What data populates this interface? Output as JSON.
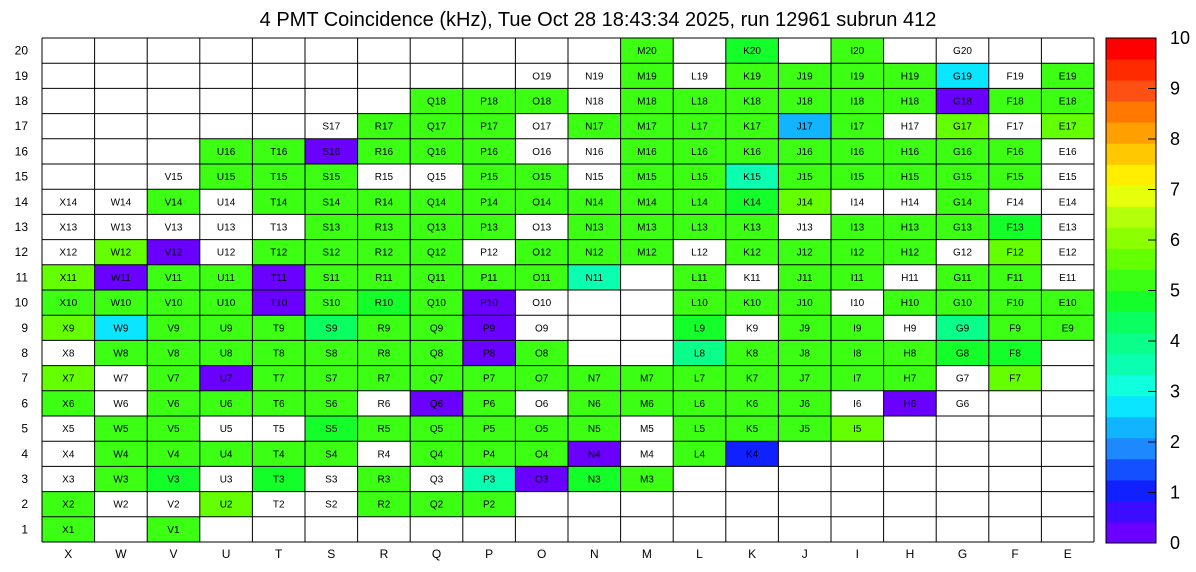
{
  "chart_data": {
    "type": "heatmap",
    "title": "4 PMT Coincidence (kHz), Tue Oct 28 18:43:34 2025, run 12961 subrun 412",
    "xlabel": "",
    "ylabel": "",
    "x_categories": [
      "X",
      "W",
      "V",
      "U",
      "T",
      "S",
      "R",
      "Q",
      "P",
      "O",
      "N",
      "M",
      "L",
      "K",
      "J",
      "I",
      "H",
      "G",
      "F",
      "E"
    ],
    "y_categories": [
      "1",
      "2",
      "3",
      "4",
      "5",
      "6",
      "7",
      "8",
      "9",
      "10",
      "11",
      "12",
      "13",
      "14",
      "15",
      "16",
      "17",
      "18",
      "19",
      "20"
    ],
    "color_scale": {
      "min": 0,
      "max": 10,
      "ticks": [
        "0",
        "1",
        "2",
        "3",
        "4",
        "5",
        "6",
        "7",
        "8",
        "9",
        "10"
      ]
    },
    "palette": [
      "#6a00ff",
      "#3b0cff",
      "#1020ff",
      "#1450ff",
      "#1e88ff",
      "#10b4ff",
      "#0ae6ff",
      "#10ffdc",
      "#0affb0",
      "#0aff8a",
      "#0aff60",
      "#14ff2a",
      "#3cff14",
      "#64ff00",
      "#8cff00",
      "#b4ff0a",
      "#e6ff0a",
      "#ffee00",
      "#ffc800",
      "#ffa000",
      "#ff7800",
      "#ff5014",
      "#ff2a00",
      "#ff0000"
    ],
    "cells": [
      {
        "label": "X1",
        "value": 5.0
      },
      {
        "label": "V1",
        "value": 5.0
      },
      {
        "label": "X2",
        "value": 5.0
      },
      {
        "label": "W2",
        "value": null
      },
      {
        "label": "V2",
        "value": null
      },
      {
        "label": "U2",
        "value": 5.6
      },
      {
        "label": "T2",
        "value": null
      },
      {
        "label": "S2",
        "value": null
      },
      {
        "label": "R2",
        "value": 5.0
      },
      {
        "label": "Q2",
        "value": 5.0
      },
      {
        "label": "P2",
        "value": 5.0
      },
      {
        "label": "X3",
        "value": null
      },
      {
        "label": "W3",
        "value": 5.0
      },
      {
        "label": "V3",
        "value": 4.6
      },
      {
        "label": "U3",
        "value": null
      },
      {
        "label": "T3",
        "value": 4.8
      },
      {
        "label": "S3",
        "value": null
      },
      {
        "label": "R3",
        "value": 5.0
      },
      {
        "label": "Q3",
        "value": null
      },
      {
        "label": "P3",
        "value": 3.5
      },
      {
        "label": "O3",
        "value": 0.3
      },
      {
        "label": "N3",
        "value": 4.8
      },
      {
        "label": "M3",
        "value": 5.0
      },
      {
        "label": "X4",
        "value": null
      },
      {
        "label": "W4",
        "value": 5.0
      },
      {
        "label": "V4",
        "value": 5.0
      },
      {
        "label": "U4",
        "value": 5.0
      },
      {
        "label": "T4",
        "value": 5.0
      },
      {
        "label": "S4",
        "value": 5.0
      },
      {
        "label": "R4",
        "value": null
      },
      {
        "label": "Q4",
        "value": 5.0
      },
      {
        "label": "P4",
        "value": 5.0
      },
      {
        "label": "O4",
        "value": 5.0
      },
      {
        "label": "N4",
        "value": 0.4
      },
      {
        "label": "M4",
        "value": null
      },
      {
        "label": "L4",
        "value": 5.1
      },
      {
        "label": "K4",
        "value": 1.0
      },
      {
        "label": "X5",
        "value": null
      },
      {
        "label": "W5",
        "value": 5.0
      },
      {
        "label": "V5",
        "value": 5.0
      },
      {
        "label": "U5",
        "value": null
      },
      {
        "label": "T5",
        "value": null
      },
      {
        "label": "S5",
        "value": 4.8
      },
      {
        "label": "R5",
        "value": 5.0
      },
      {
        "label": "Q5",
        "value": 5.0
      },
      {
        "label": "P5",
        "value": 5.0
      },
      {
        "label": "O5",
        "value": 5.0
      },
      {
        "label": "N5",
        "value": 5.0
      },
      {
        "label": "M5",
        "value": null
      },
      {
        "label": "L5",
        "value": 5.0
      },
      {
        "label": "K5",
        "value": 5.0
      },
      {
        "label": "J5",
        "value": 5.0
      },
      {
        "label": "I5",
        "value": 5.6
      },
      {
        "label": "X6",
        "value": 5.0
      },
      {
        "label": "W6",
        "value": null
      },
      {
        "label": "V6",
        "value": 5.0
      },
      {
        "label": "U6",
        "value": 5.0
      },
      {
        "label": "T6",
        "value": 5.0
      },
      {
        "label": "S6",
        "value": 5.0
      },
      {
        "label": "R6",
        "value": null
      },
      {
        "label": "Q6",
        "value": 0.4
      },
      {
        "label": "P6",
        "value": 5.0
      },
      {
        "label": "O6",
        "value": null
      },
      {
        "label": "N6",
        "value": 5.0
      },
      {
        "label": "M6",
        "value": 5.0
      },
      {
        "label": "L6",
        "value": 5.0
      },
      {
        "label": "K6",
        "value": 5.0
      },
      {
        "label": "J6",
        "value": 5.0
      },
      {
        "label": "I6",
        "value": null
      },
      {
        "label": "H6",
        "value": 0.4
      },
      {
        "label": "G6",
        "value": null
      },
      {
        "label": "X7",
        "value": 5.6
      },
      {
        "label": "W7",
        "value": null
      },
      {
        "label": "V7",
        "value": 5.0
      },
      {
        "label": "U7",
        "value": 0.4
      },
      {
        "label": "T7",
        "value": 5.0
      },
      {
        "label": "S7",
        "value": 5.0
      },
      {
        "label": "R7",
        "value": 5.0
      },
      {
        "label": "Q7",
        "value": 5.0
      },
      {
        "label": "P7",
        "value": 5.0
      },
      {
        "label": "O7",
        "value": 5.0
      },
      {
        "label": "N7",
        "value": 5.0
      },
      {
        "label": "M7",
        "value": 5.0
      },
      {
        "label": "L7",
        "value": 5.0
      },
      {
        "label": "K7",
        "value": 5.0
      },
      {
        "label": "J7",
        "value": 5.0
      },
      {
        "label": "I7",
        "value": 5.0
      },
      {
        "label": "H7",
        "value": 5.0
      },
      {
        "label": "G7",
        "value": null
      },
      {
        "label": "F7",
        "value": 5.6
      },
      {
        "label": "X8",
        "value": null
      },
      {
        "label": "W8",
        "value": 5.0
      },
      {
        "label": "V8",
        "value": 5.0
      },
      {
        "label": "U8",
        "value": 5.0
      },
      {
        "label": "T8",
        "value": 5.0
      },
      {
        "label": "S8",
        "value": 5.0
      },
      {
        "label": "R8",
        "value": 5.0
      },
      {
        "label": "Q8",
        "value": 5.0
      },
      {
        "label": "P8",
        "value": 0.4
      },
      {
        "label": "O8",
        "value": 5.0
      },
      {
        "label": "L8",
        "value": 4.0
      },
      {
        "label": "K8",
        "value": 5.0
      },
      {
        "label": "J8",
        "value": 5.0
      },
      {
        "label": "I8",
        "value": 5.0
      },
      {
        "label": "H8",
        "value": 5.0
      },
      {
        "label": "G8",
        "value": 4.8
      },
      {
        "label": "F8",
        "value": 4.8
      },
      {
        "label": "X9",
        "value": 5.6
      },
      {
        "label": "W9",
        "value": 2.8
      },
      {
        "label": "V9",
        "value": 5.0
      },
      {
        "label": "U9",
        "value": 5.0
      },
      {
        "label": "T9",
        "value": 5.0
      },
      {
        "label": "S9",
        "value": 4.3
      },
      {
        "label": "R9",
        "value": 5.0
      },
      {
        "label": "Q9",
        "value": 5.0
      },
      {
        "label": "P9",
        "value": 0.4
      },
      {
        "label": "O9",
        "value": null
      },
      {
        "label": "L9",
        "value": 4.8
      },
      {
        "label": "K9",
        "value": null
      },
      {
        "label": "J9",
        "value": 5.0
      },
      {
        "label": "I9",
        "value": 5.0
      },
      {
        "label": "H9",
        "value": null
      },
      {
        "label": "G9",
        "value": 4.0
      },
      {
        "label": "F9",
        "value": 5.0
      },
      {
        "label": "E9",
        "value": 5.0
      },
      {
        "label": "X10",
        "value": 5.0
      },
      {
        "label": "W10",
        "value": 5.0
      },
      {
        "label": "V10",
        "value": 5.0
      },
      {
        "label": "U10",
        "value": 5.0
      },
      {
        "label": "T10",
        "value": 0.4
      },
      {
        "label": "S10",
        "value": 5.0
      },
      {
        "label": "R10",
        "value": 4.6
      },
      {
        "label": "Q10",
        "value": 5.0
      },
      {
        "label": "P10",
        "value": 0.4
      },
      {
        "label": "O10",
        "value": null
      },
      {
        "label": "L10",
        "value": 5.0
      },
      {
        "label": "K10",
        "value": 5.0
      },
      {
        "label": "J10",
        "value": 5.0
      },
      {
        "label": "I10",
        "value": null
      },
      {
        "label": "H10",
        "value": 5.0
      },
      {
        "label": "G10",
        "value": 5.0
      },
      {
        "label": "F10",
        "value": 5.0
      },
      {
        "label": "E10",
        "value": 5.0
      },
      {
        "label": "X11",
        "value": 5.6
      },
      {
        "label": "W11",
        "value": 0.4
      },
      {
        "label": "V11",
        "value": 5.0
      },
      {
        "label": "U11",
        "value": 5.0
      },
      {
        "label": "T11",
        "value": 0.4
      },
      {
        "label": "S11",
        "value": 5.0
      },
      {
        "label": "R11",
        "value": 5.0
      },
      {
        "label": "Q11",
        "value": 5.0
      },
      {
        "label": "P11",
        "value": 5.0
      },
      {
        "label": "O11",
        "value": 5.0
      },
      {
        "label": "N11",
        "value": 3.5
      },
      {
        "label": "L11",
        "value": 5.0
      },
      {
        "label": "K11",
        "value": null
      },
      {
        "label": "J11",
        "value": 5.0
      },
      {
        "label": "I11",
        "value": 5.0
      },
      {
        "label": "H11",
        "value": null
      },
      {
        "label": "G11",
        "value": 5.0
      },
      {
        "label": "F11",
        "value": 5.0
      },
      {
        "label": "E11",
        "value": null
      },
      {
        "label": "X12",
        "value": null
      },
      {
        "label": "W12",
        "value": 5.6
      },
      {
        "label": "V12",
        "value": 0.4
      },
      {
        "label": "U12",
        "value": null
      },
      {
        "label": "T12",
        "value": 5.0
      },
      {
        "label": "S12",
        "value": 5.0
      },
      {
        "label": "R12",
        "value": 5.0
      },
      {
        "label": "Q12",
        "value": 5.0
      },
      {
        "label": "P12",
        "value": null
      },
      {
        "label": "O12",
        "value": 5.0
      },
      {
        "label": "N12",
        "value": 5.0
      },
      {
        "label": "M12",
        "value": 5.0
      },
      {
        "label": "L12",
        "value": null
      },
      {
        "label": "K12",
        "value": 5.0
      },
      {
        "label": "J12",
        "value": 5.0
      },
      {
        "label": "I12",
        "value": 5.0
      },
      {
        "label": "H12",
        "value": 5.0
      },
      {
        "label": "G12",
        "value": null
      },
      {
        "label": "F12",
        "value": 5.6
      },
      {
        "label": "E12",
        "value": null
      },
      {
        "label": "X13",
        "value": null
      },
      {
        "label": "W13",
        "value": null
      },
      {
        "label": "V13",
        "value": null
      },
      {
        "label": "U13",
        "value": null
      },
      {
        "label": "T13",
        "value": null
      },
      {
        "label": "S13",
        "value": 5.0
      },
      {
        "label": "R13",
        "value": 5.0
      },
      {
        "label": "Q13",
        "value": 5.0
      },
      {
        "label": "P13",
        "value": 5.0
      },
      {
        "label": "O13",
        "value": null
      },
      {
        "label": "N13",
        "value": 5.0
      },
      {
        "label": "M13",
        "value": 5.0
      },
      {
        "label": "L13",
        "value": 5.0
      },
      {
        "label": "K13",
        "value": 5.0
      },
      {
        "label": "J13",
        "value": null
      },
      {
        "label": "I13",
        "value": 5.0
      },
      {
        "label": "H13",
        "value": 5.0
      },
      {
        "label": "G13",
        "value": 5.0
      },
      {
        "label": "F13",
        "value": 4.6
      },
      {
        "label": "E13",
        "value": null
      },
      {
        "label": "X14",
        "value": null
      },
      {
        "label": "W14",
        "value": null
      },
      {
        "label": "V14",
        "value": 5.0
      },
      {
        "label": "U14",
        "value": null
      },
      {
        "label": "T14",
        "value": 5.0
      },
      {
        "label": "S14",
        "value": 5.0
      },
      {
        "label": "R14",
        "value": 5.0
      },
      {
        "label": "Q14",
        "value": 5.0
      },
      {
        "label": "P14",
        "value": 5.0
      },
      {
        "label": "O14",
        "value": 5.0
      },
      {
        "label": "N14",
        "value": 5.0
      },
      {
        "label": "M14",
        "value": 5.0
      },
      {
        "label": "L14",
        "value": 5.0
      },
      {
        "label": "K14",
        "value": 4.6
      },
      {
        "label": "J14",
        "value": 5.6
      },
      {
        "label": "I14",
        "value": null
      },
      {
        "label": "H14",
        "value": null
      },
      {
        "label": "G14",
        "value": 5.0
      },
      {
        "label": "F14",
        "value": null
      },
      {
        "label": "E14",
        "value": null
      },
      {
        "label": "V15",
        "value": null
      },
      {
        "label": "U15",
        "value": 5.0
      },
      {
        "label": "T15",
        "value": 5.0
      },
      {
        "label": "S15",
        "value": 5.0
      },
      {
        "label": "R15",
        "value": null
      },
      {
        "label": "Q15",
        "value": null
      },
      {
        "label": "P15",
        "value": 5.0
      },
      {
        "label": "O15",
        "value": 5.0
      },
      {
        "label": "N15",
        "value": null
      },
      {
        "label": "M15",
        "value": 5.0
      },
      {
        "label": "L15",
        "value": 5.0
      },
      {
        "label": "K15",
        "value": 3.6
      },
      {
        "label": "J15",
        "value": 5.0
      },
      {
        "label": "I15",
        "value": 5.0
      },
      {
        "label": "H15",
        "value": 5.0
      },
      {
        "label": "G15",
        "value": 5.0
      },
      {
        "label": "F15",
        "value": 5.0
      },
      {
        "label": "E15",
        "value": null
      },
      {
        "label": "U16",
        "value": 5.0
      },
      {
        "label": "T16",
        "value": 5.0
      },
      {
        "label": "S16",
        "value": 0.4
      },
      {
        "label": "R16",
        "value": 5.0
      },
      {
        "label": "Q16",
        "value": 5.0
      },
      {
        "label": "P16",
        "value": 5.0
      },
      {
        "label": "O16",
        "value": null
      },
      {
        "label": "N16",
        "value": null
      },
      {
        "label": "M16",
        "value": 5.0
      },
      {
        "label": "L16",
        "value": 5.0
      },
      {
        "label": "K16",
        "value": 5.0
      },
      {
        "label": "J16",
        "value": 5.0
      },
      {
        "label": "I16",
        "value": 5.0
      },
      {
        "label": "H16",
        "value": 5.0
      },
      {
        "label": "G16",
        "value": 5.0
      },
      {
        "label": "F16",
        "value": 5.0
      },
      {
        "label": "E16",
        "value": null
      },
      {
        "label": "S17",
        "value": null
      },
      {
        "label": "R17",
        "value": 5.0
      },
      {
        "label": "Q17",
        "value": 5.0
      },
      {
        "label": "P17",
        "value": 5.0
      },
      {
        "label": "O17",
        "value": null
      },
      {
        "label": "N17",
        "value": 5.0
      },
      {
        "label": "M17",
        "value": 5.0
      },
      {
        "label": "L17",
        "value": 5.0
      },
      {
        "label": "K17",
        "value": 5.0
      },
      {
        "label": "J17",
        "value": 2.3
      },
      {
        "label": "I17",
        "value": 5.0
      },
      {
        "label": "H17",
        "value": null
      },
      {
        "label": "G17",
        "value": 5.6
      },
      {
        "label": "F17",
        "value": null
      },
      {
        "label": "E17",
        "value": 5.6
      },
      {
        "label": "Q18",
        "value": 5.0
      },
      {
        "label": "P18",
        "value": 5.0
      },
      {
        "label": "O18",
        "value": 5.0
      },
      {
        "label": "N18",
        "value": null
      },
      {
        "label": "M18",
        "value": 5.0
      },
      {
        "label": "L18",
        "value": 5.0
      },
      {
        "label": "K18",
        "value": 5.0
      },
      {
        "label": "J18",
        "value": 5.0
      },
      {
        "label": "I18",
        "value": 5.0
      },
      {
        "label": "H18",
        "value": 5.0
      },
      {
        "label": "G18",
        "value": 0.4
      },
      {
        "label": "F18",
        "value": 5.0
      },
      {
        "label": "E18",
        "value": 5.0
      },
      {
        "label": "O19",
        "value": null
      },
      {
        "label": "N19",
        "value": null
      },
      {
        "label": "M19",
        "value": 5.0
      },
      {
        "label": "L19",
        "value": null
      },
      {
        "label": "K19",
        "value": 5.0
      },
      {
        "label": "J19",
        "value": 5.0
      },
      {
        "label": "I19",
        "value": 5.0
      },
      {
        "label": "H19",
        "value": 5.0
      },
      {
        "label": "G19",
        "value": 2.8
      },
      {
        "label": "F19",
        "value": null
      },
      {
        "label": "E19",
        "value": 5.0
      },
      {
        "label": "M20",
        "value": 5.0
      },
      {
        "label": "K20",
        "value": 4.6
      },
      {
        "label": "I20",
        "value": 5.0
      },
      {
        "label": "G20",
        "value": null
      }
    ]
  }
}
